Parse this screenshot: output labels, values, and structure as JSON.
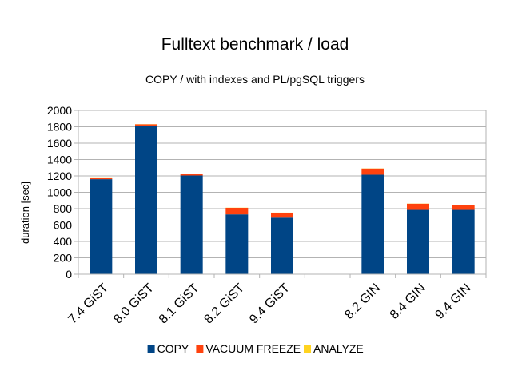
{
  "chart_data": {
    "type": "bar",
    "stacked": true,
    "title": "Fulltext benchmark / load",
    "subtitle": "COPY / with indexes and PL/pgSQL triggers",
    "xlabel": "",
    "ylabel": "duration [sec]",
    "ylim": [
      0,
      2000
    ],
    "yticks": [
      0,
      200,
      400,
      600,
      800,
      1000,
      1200,
      1400,
      1600,
      1800,
      2000
    ],
    "grid": true,
    "legend_position": "bottom",
    "categories": [
      "7.4 GiST",
      "8.0 GiST",
      "8.1 GiST",
      "8.2 GiST",
      "9.4 GiST",
      "",
      "8.2 GIN",
      "8.4 GIN",
      "9.4 GIN"
    ],
    "series": [
      {
        "name": "COPY",
        "color": "#004586",
        "values": [
          1160,
          1815,
          1205,
          730,
          690,
          0,
          1215,
          785,
          785
        ]
      },
      {
        "name": "VACUUM FREEZE",
        "color": "#ff420e",
        "values": [
          20,
          15,
          20,
          80,
          60,
          0,
          75,
          75,
          60
        ]
      },
      {
        "name": "ANALYZE",
        "color": "#ffd320",
        "values": [
          2,
          2,
          2,
          2,
          2,
          0,
          2,
          2,
          2
        ]
      }
    ]
  }
}
